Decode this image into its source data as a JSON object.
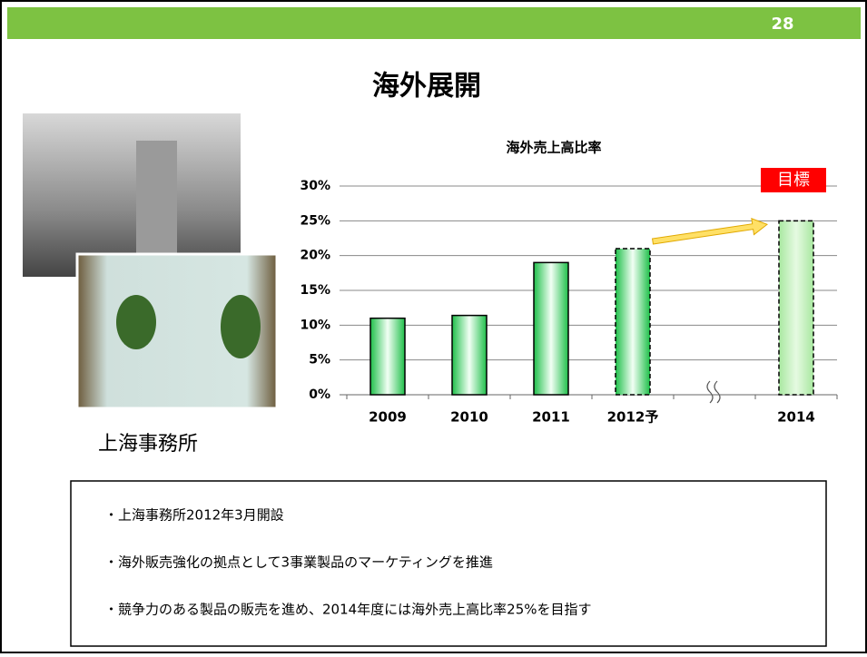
{
  "page_number": "28",
  "title": "海外展開",
  "caption": "上海事務所",
  "bullets": [
    "・上海事務所2012年3月開設",
    "・海外販売強化の拠点として3事業製品のマーケティングを推進",
    "・競争力のある製品の販売を進め、2014年度には海外売上高比率25%を目指す"
  ],
  "chart_data": {
    "type": "bar",
    "title": "海外売上高比率",
    "categories": [
      "2009",
      "2010",
      "2011",
      "2012予",
      null,
      "2014"
    ],
    "values": [
      11,
      11.4,
      19,
      21,
      null,
      25
    ],
    "color": "#22cc55",
    "ylim": [
      0,
      30
    ],
    "yticks": [
      {
        "value": 0,
        "label": "0%"
      },
      {
        "value": 5,
        "label": "5%"
      },
      {
        "value": 10,
        "label": "10%"
      },
      {
        "value": 15,
        "label": "15%"
      },
      {
        "value": 20,
        "label": "20%"
      },
      {
        "value": 25,
        "label": "25%"
      },
      {
        "value": 30,
        "label": "30%"
      }
    ],
    "grid": true,
    "annotation": "目標"
  }
}
